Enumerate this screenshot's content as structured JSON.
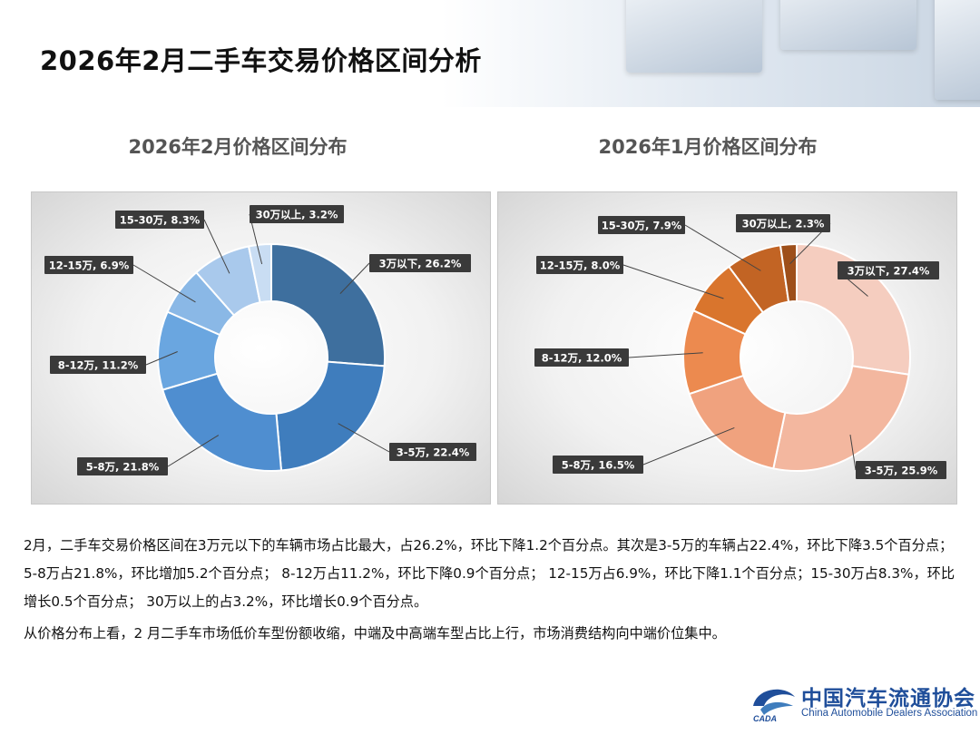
{
  "page": {
    "title": "2026年2月二手车交易价格区间分析"
  },
  "chart_data": [
    {
      "type": "pie",
      "title": "2026年2月价格区间分布",
      "categories": [
        "3万以下",
        "3-5万",
        "5-8万",
        "8-12万",
        "12-15万",
        "15-30万",
        "30万以上"
      ],
      "values": [
        26.2,
        22.4,
        21.8,
        11.2,
        6.9,
        8.3,
        3.2
      ],
      "labels": [
        "3万以下, 26.2%",
        "3-5万, 22.4%",
        "5-8万, 21.8%",
        "8-12万, 11.2%",
        "12-15万, 6.9%",
        "15-30万, 8.3%",
        "30万以上, 3.2%"
      ],
      "colors": [
        "#3e6f9e",
        "#3f7dbd",
        "#4f8ed0",
        "#6aa6e0",
        "#8ab8e6",
        "#a9c9ec",
        "#c9ddf3"
      ]
    },
    {
      "type": "pie",
      "title": "2026年1月价格区间分布",
      "categories": [
        "3万以下",
        "3-5万",
        "5-8万",
        "8-12万",
        "12-15万",
        "15-30万",
        "30万以上"
      ],
      "values": [
        27.4,
        25.9,
        16.5,
        12.0,
        8.0,
        7.9,
        2.3
      ],
      "labels": [
        "3万以下, 27.4%",
        "3-5万, 25.9%",
        "5-8万, 16.5%",
        "8-12万, 12.0%",
        "12-15万, 8.0%",
        "15-30万, 7.9%",
        "30万以上, 2.3%"
      ],
      "colors": [
        "#f5cdbf",
        "#f3b79f",
        "#f0a27e",
        "#ec8a4f",
        "#d9752d",
        "#c26424",
        "#9e4f1a"
      ]
    }
  ],
  "text": {
    "paragraph1": "2月，二手车交易价格区间在3万元以下的车辆市场占比最大，占26.2%，环比下降1.2个百分点。其次是3-5万的车辆占22.4%，环比下降3.5个百分点； 5-8万占21.8%，环比增加5.2个百分点； 8-12万占11.2%，环比下降0.9个百分点； 12-15万占6.9%，环比下降1.1个百分点；15-30万占8.3%，环比增长0.5个百分点； 30万以上的占3.2%，环比增长0.9个百分点。",
    "paragraph2": "从价格分布上看，2 月二手车市场低价车型份额收缩，中端及中高端车型占比上行，市场消费结构向中端价位集中。"
  },
  "footer": {
    "org_cn": "中国汽车流通协会",
    "org_en": "China Automobile Dealers Association",
    "logo_abbr": "CADA"
  }
}
